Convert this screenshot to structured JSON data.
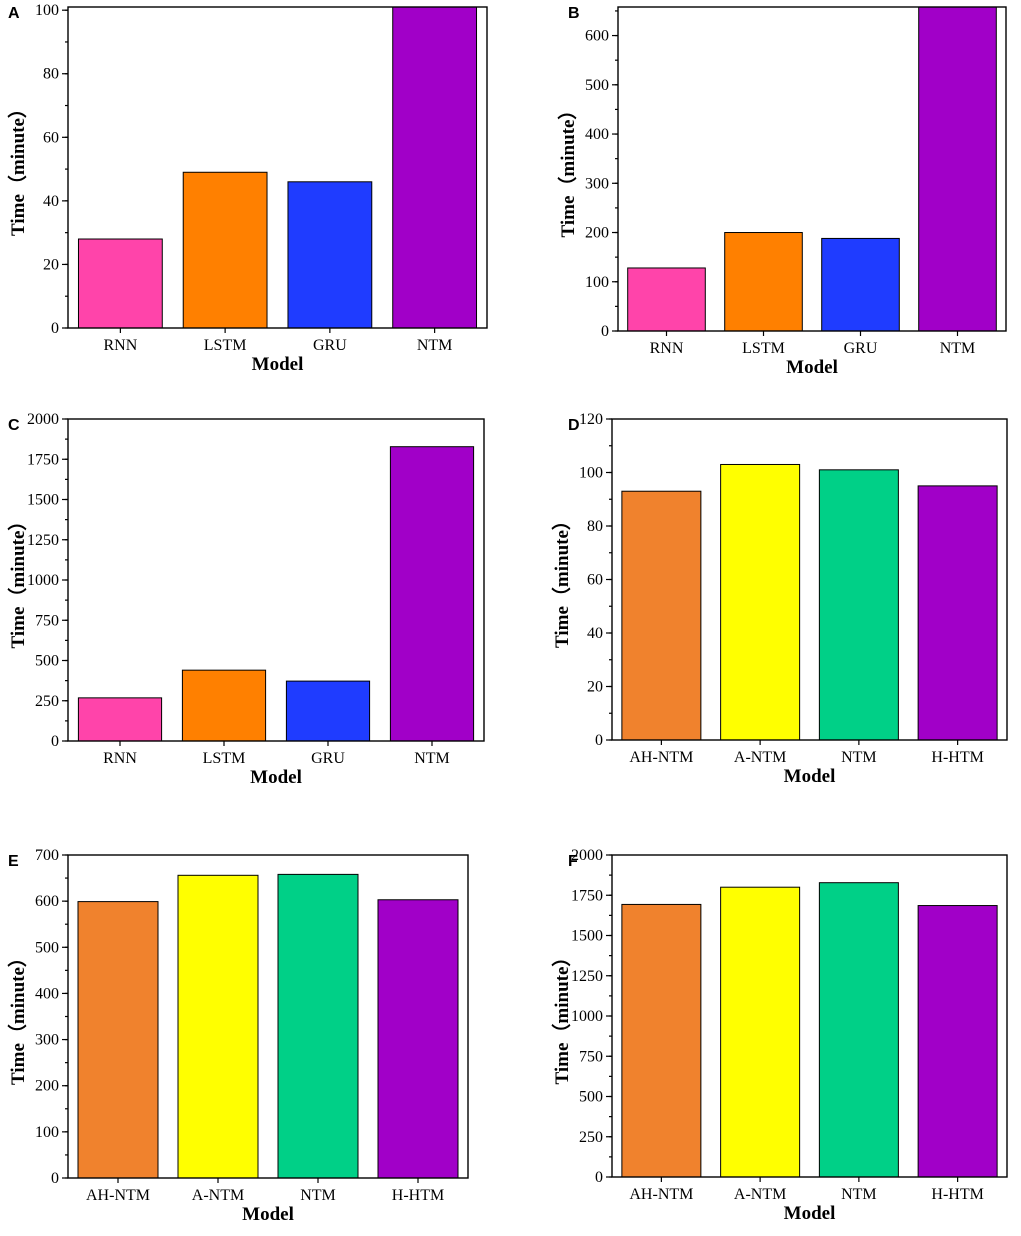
{
  "chart_data": [
    {
      "panel": "A",
      "type": "bar",
      "categories": [
        "RNN",
        "LSTM",
        "GRU",
        "NTM"
      ],
      "values": [
        28,
        49,
        46,
        101
      ],
      "colors": [
        "#ff44aa",
        "#ff8000",
        "#1f3cff",
        "#a100c8"
      ],
      "xlabel": "Model",
      "ylabel": "Time（minute）",
      "ylim": [
        0,
        101
      ],
      "major_ticks": [
        0,
        20,
        40,
        60,
        80,
        100
      ],
      "tick_labels": [
        "0",
        "20",
        "40",
        "60",
        "80",
        "100"
      ],
      "minor_step": 10
    },
    {
      "panel": "B",
      "type": "bar",
      "categories": [
        "RNN",
        "LSTM",
        "GRU",
        "NTM"
      ],
      "values": [
        128,
        200,
        188,
        658
      ],
      "colors": [
        "#ff44aa",
        "#ff8000",
        "#1f3cff",
        "#a100c8"
      ],
      "xlabel": "Model",
      "ylabel": "Time（minute）",
      "ylim": [
        0,
        658
      ],
      "major_ticks": [
        0,
        100,
        200,
        300,
        400,
        500,
        600
      ],
      "tick_labels": [
        "0",
        "100",
        "200",
        "300",
        "400",
        "500",
        "600"
      ],
      "minor_step": 50
    },
    {
      "panel": "C",
      "type": "bar",
      "categories": [
        "RNN",
        "LSTM",
        "GRU",
        "NTM"
      ],
      "values": [
        268,
        440,
        372,
        1828
      ],
      "colors": [
        "#ff44aa",
        "#ff8000",
        "#1f3cff",
        "#a100c8"
      ],
      "xlabel": "Model",
      "ylabel": "Time（minute）",
      "ylim": [
        0,
        2000
      ],
      "major_ticks": [
        0,
        250,
        500,
        750,
        1000,
        1250,
        1500,
        1750,
        2000
      ],
      "tick_labels": [
        "0",
        "250",
        "500",
        "750",
        "1000",
        "1250",
        "1500",
        "1750",
        "2000"
      ],
      "minor_step": 125
    },
    {
      "panel": "D",
      "type": "bar",
      "categories": [
        "AH-NTM",
        "A-NTM",
        "NTM",
        "H-HTM"
      ],
      "values": [
        93,
        103,
        101,
        95
      ],
      "colors": [
        "#f0822d",
        "#ffff00",
        "#00d087",
        "#a100c8"
      ],
      "xlabel": "Model",
      "ylabel": "Time（minute）",
      "ylim": [
        0,
        120
      ],
      "major_ticks": [
        0,
        20,
        40,
        60,
        80,
        100,
        120
      ],
      "tick_labels": [
        "0",
        "20",
        "40",
        "60",
        "80",
        "100",
        "120"
      ],
      "minor_step": 10
    },
    {
      "panel": "E",
      "type": "bar",
      "categories": [
        "AH-NTM",
        "A-NTM",
        "NTM",
        "H-HTM"
      ],
      "values": [
        599,
        656,
        658,
        603
      ],
      "colors": [
        "#f0822d",
        "#ffff00",
        "#00d087",
        "#a100c8"
      ],
      "xlabel": "Model",
      "ylabel": "Time（minute）",
      "ylim": [
        0,
        700
      ],
      "major_ticks": [
        0,
        100,
        200,
        300,
        400,
        500,
        600,
        700
      ],
      "tick_labels": [
        "0",
        "100",
        "200",
        "300",
        "400",
        "500",
        "600",
        "700"
      ],
      "minor_step": 50
    },
    {
      "panel": "F",
      "type": "bar",
      "categories": [
        "AH-NTM",
        "A-NTM",
        "NTM",
        "H-HTM"
      ],
      "values": [
        1693,
        1800,
        1828,
        1686
      ],
      "colors": [
        "#f0822d",
        "#ffff00",
        "#00d087",
        "#a100c8"
      ],
      "xlabel": "Model",
      "ylabel": "Time（minute）",
      "ylim": [
        0,
        2000
      ],
      "major_ticks": [
        0,
        250,
        500,
        750,
        1000,
        1250,
        1500,
        1750,
        2000
      ],
      "tick_labels": [
        "0",
        "250",
        "500",
        "750",
        "1000",
        "1250",
        "1500",
        "1750",
        "2000"
      ],
      "minor_step": 125
    }
  ]
}
